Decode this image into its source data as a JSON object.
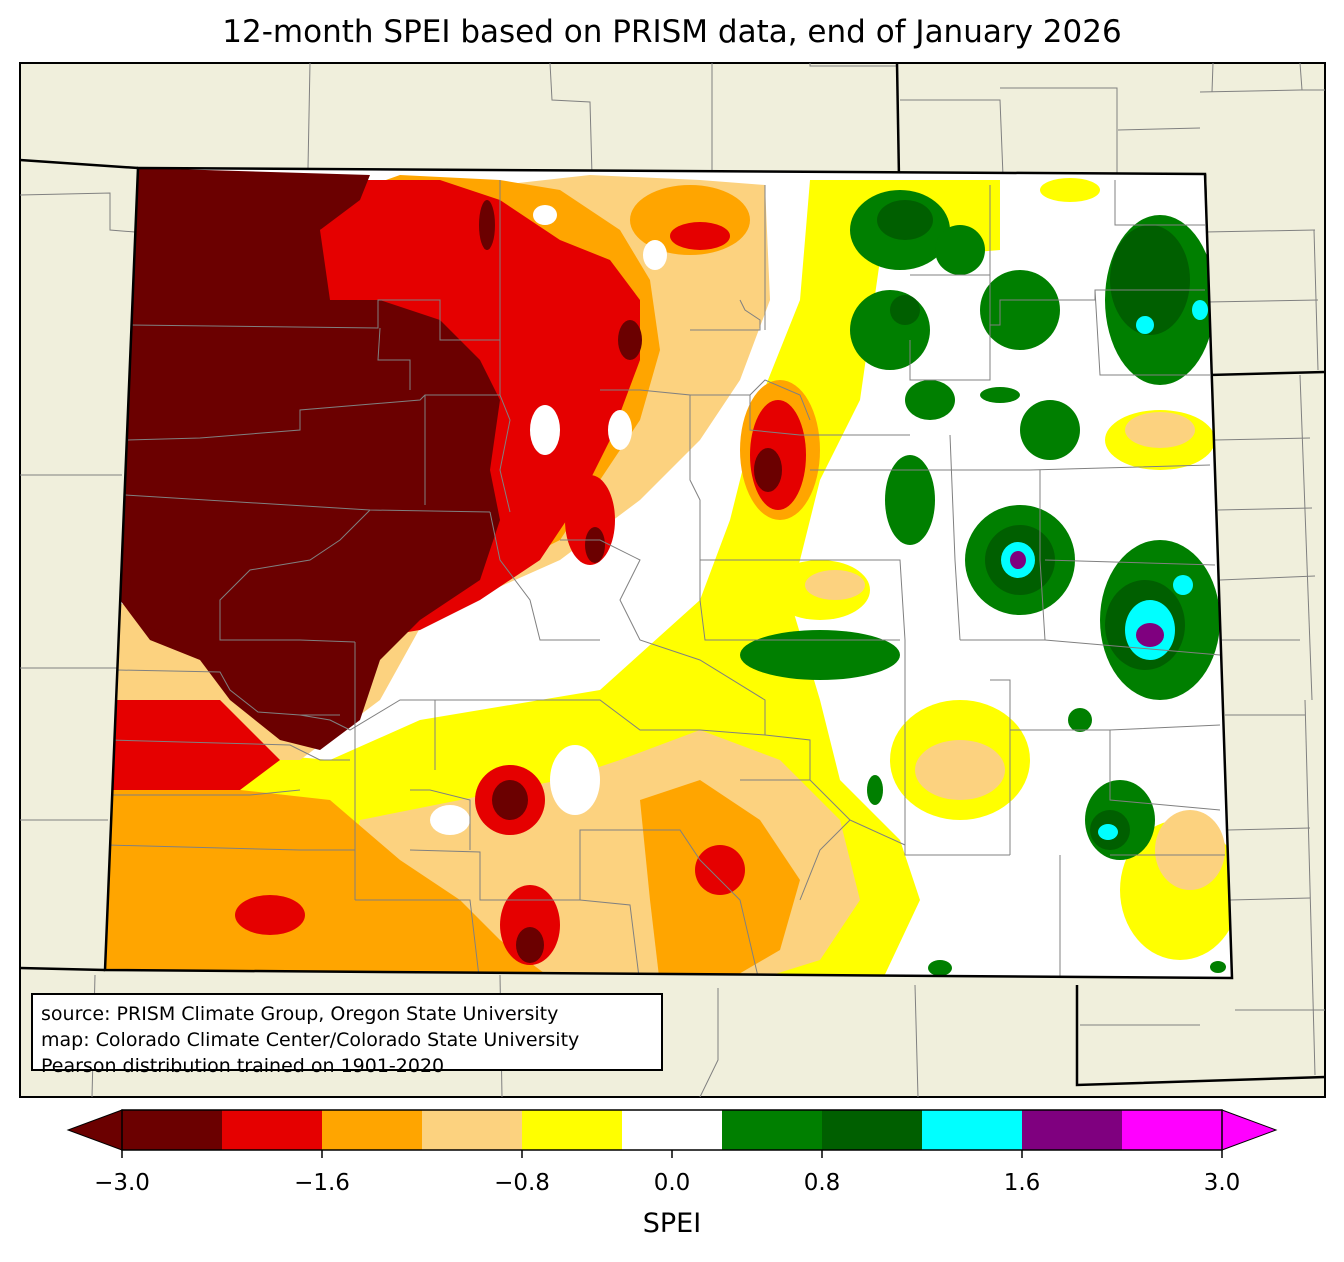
{
  "title": "12-month SPEI based on PRISM data, end of January 2026",
  "source_lines": [
    "source: PRISM Climate Group, Oregon State University",
    "map: Colorado Climate Center/Colorado State University",
    "Pearson distribution trained on 1901-2020"
  ],
  "colorbar": {
    "label": "SPEI",
    "range": [
      -3.0,
      3.0
    ],
    "ticks": [
      {
        "value": -3.0,
        "label": "−3.0"
      },
      {
        "value": -1.6,
        "label": "−1.6"
      },
      {
        "value": -0.8,
        "label": "−0.8"
      },
      {
        "value": 0.0,
        "label": "0.0"
      },
      {
        "value": 0.8,
        "label": "0.8"
      },
      {
        "value": 1.6,
        "label": "1.6"
      },
      {
        "value": 3.0,
        "label": "3.0"
      }
    ],
    "bins": [
      {
        "min": -3.0,
        "max": -2.0,
        "color": "#6b0000"
      },
      {
        "min": -2.0,
        "max": -1.6,
        "color": "#e50000"
      },
      {
        "min": -1.6,
        "max": -1.2,
        "color": "#ffa500"
      },
      {
        "min": -1.2,
        "max": -0.8,
        "color": "#fcd27f"
      },
      {
        "min": -0.8,
        "max": -0.4,
        "color": "#ffff00"
      },
      {
        "min": -0.4,
        "max": 0.4,
        "color": "#ffffff"
      },
      {
        "min": 0.4,
        "max": 0.8,
        "color": "#007f00"
      },
      {
        "min": 0.8,
        "max": 1.2,
        "color": "#005f00"
      },
      {
        "min": 1.2,
        "max": 1.6,
        "color": "#00ffff"
      },
      {
        "min": 1.6,
        "max": 2.0,
        "color": "#7f007f"
      },
      {
        "min": 2.0,
        "max": 3.0,
        "color": "#ff00ff"
      }
    ],
    "extend_low_color": "#6b0000",
    "extend_high_color": "#ff00ff"
  },
  "colors": {
    "land_background": "#f0efdc",
    "state_border": "#000000",
    "county_border": "#808080"
  }
}
